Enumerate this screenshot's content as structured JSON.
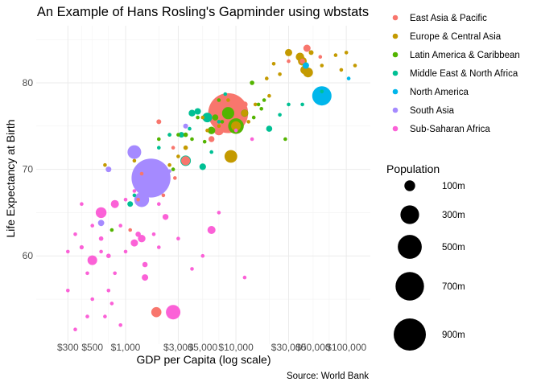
{
  "chart_data": {
    "type": "scatter",
    "title": "An Example of Hans Rosling's Gapminder using wbstats",
    "xlabel": "GDP per Capita (log scale)",
    "ylabel": "Life Expectancy at Birth",
    "caption": "Source: World Bank",
    "x_scale": "log10",
    "xlim": [
      155,
      165000
    ],
    "ylim": [
      49.8,
      86.6
    ],
    "x_ticks": [
      300,
      500,
      1000,
      3000,
      5000,
      10000,
      30000,
      50000,
      100000
    ],
    "x_tick_labels": [
      "$300",
      "$500",
      "$1,000",
      "$3,000",
      "$5,000",
      "$10,000",
      "$30,000",
      "$50,000",
      "$100,000"
    ],
    "y_ticks": [
      60,
      70,
      80
    ],
    "y_tick_labels": [
      "60",
      "70",
      "80"
    ],
    "grid": true,
    "legend_color_position": "top-right",
    "legend_size_position": "right",
    "size_legend": {
      "title": "Population",
      "entries": [
        {
          "label": "100m",
          "value": 100
        },
        {
          "label": "300m",
          "value": 300
        },
        {
          "label": "500m",
          "value": 500
        },
        {
          "label": "700m",
          "value": 700
        },
        {
          "label": "900m",
          "value": 900
        }
      ]
    },
    "series": [
      {
        "name": "East Asia & Pacific",
        "color": "#F8766D",
        "points": [
          {
            "x": 2000,
            "y": 75.5,
            "pop": 20
          },
          {
            "x": 3500,
            "y": 71,
            "pop": 70
          },
          {
            "x": 8500,
            "y": 76.5,
            "pop": 1380
          },
          {
            "x": 7000,
            "y": 74.5,
            "pop": 80
          },
          {
            "x": 6000,
            "y": 73.5,
            "pop": 30
          },
          {
            "x": 12000,
            "y": 77.5,
            "pop": 30
          },
          {
            "x": 44000,
            "y": 84,
            "pop": 45
          },
          {
            "x": 40000,
            "y": 82.5,
            "pop": 23
          },
          {
            "x": 30000,
            "y": 82.5,
            "pop": 8
          },
          {
            "x": 58000,
            "y": 83,
            "pop": 6
          },
          {
            "x": 1900,
            "y": 53.5,
            "pop": 90
          },
          {
            "x": 2700,
            "y": 72.5,
            "pop": 6
          },
          {
            "x": 1400,
            "y": 69.5,
            "pop": 6
          },
          {
            "x": 2200,
            "y": 67,
            "pop": 10
          },
          {
            "x": 2800,
            "y": 69,
            "pop": 5
          },
          {
            "x": 1100,
            "y": 63,
            "pop": 4
          },
          {
            "x": 1300,
            "y": 66.5,
            "pop": 5
          }
        ]
      },
      {
        "name": "Europe & Central Asia",
        "color": "#C49A00",
        "points": [
          {
            "x": 9000,
            "y": 71.5,
            "pop": 140
          },
          {
            "x": 10000,
            "y": 75,
            "pop": 80
          },
          {
            "x": 45000,
            "y": 81.2,
            "pop": 82
          },
          {
            "x": 40000,
            "y": 82.5,
            "pop": 65
          },
          {
            "x": 38000,
            "y": 83,
            "pop": 60
          },
          {
            "x": 30000,
            "y": 83.5,
            "pop": 46
          },
          {
            "x": 42000,
            "y": 81.5,
            "pop": 66
          },
          {
            "x": 48000,
            "y": 83.5,
            "pop": 20
          },
          {
            "x": 60000,
            "y": 82,
            "pop": 10
          },
          {
            "x": 80000,
            "y": 83.2,
            "pop": 6
          },
          {
            "x": 100000,
            "y": 83.5,
            "pop": 1
          },
          {
            "x": 120000,
            "y": 82,
            "pop": 1
          },
          {
            "x": 90000,
            "y": 81.5,
            "pop": 1
          },
          {
            "x": 25000,
            "y": 81,
            "pop": 5
          },
          {
            "x": 20000,
            "y": 78.5,
            "pop": 10
          },
          {
            "x": 15000,
            "y": 77.5,
            "pop": 5
          },
          {
            "x": 12000,
            "y": 76.5,
            "pop": 38
          },
          {
            "x": 13000,
            "y": 75.5,
            "pop": 10
          },
          {
            "x": 7000,
            "y": 75,
            "pop": 7
          },
          {
            "x": 5500,
            "y": 74.5,
            "pop": 4
          },
          {
            "x": 8500,
            "y": 78,
            "pop": 8
          },
          {
            "x": 3500,
            "y": 72.5,
            "pop": 18
          },
          {
            "x": 2500,
            "y": 70.5,
            "pop": 9
          },
          {
            "x": 1200,
            "y": 71,
            "pop": 6
          },
          {
            "x": 650,
            "y": 70.5,
            "pop": 9
          },
          {
            "x": 3000,
            "y": 71.5,
            "pop": 3
          },
          {
            "x": 5000,
            "y": 76,
            "pop": 3
          },
          {
            "x": 19000,
            "y": 80.5,
            "pop": 2
          },
          {
            "x": 22000,
            "y": 82.2,
            "pop": 2
          }
        ]
      },
      {
        "name": "Latin America & Caribbean",
        "color": "#53B400",
        "points": [
          {
            "x": 10000,
            "y": 75,
            "pop": 210
          },
          {
            "x": 8500,
            "y": 76.5,
            "pop": 130
          },
          {
            "x": 12000,
            "y": 76.5,
            "pop": 45
          },
          {
            "x": 14000,
            "y": 80,
            "pop": 18
          },
          {
            "x": 6000,
            "y": 74.5,
            "pop": 50
          },
          {
            "x": 6500,
            "y": 76,
            "pop": 32
          },
          {
            "x": 3500,
            "y": 74,
            "pop": 17
          },
          {
            "x": 4000,
            "y": 73.5,
            "pop": 11
          },
          {
            "x": 2000,
            "y": 73.5,
            "pop": 10
          },
          {
            "x": 2500,
            "y": 74,
            "pop": 9
          },
          {
            "x": 750,
            "y": 63,
            "pop": 11
          },
          {
            "x": 14500,
            "y": 76,
            "pop": 4
          },
          {
            "x": 17000,
            "y": 77,
            "pop": 6
          },
          {
            "x": 16000,
            "y": 77.5,
            "pop": 3
          },
          {
            "x": 7000,
            "y": 78,
            "pop": 5
          },
          {
            "x": 3000,
            "y": 74,
            "pop": 4
          },
          {
            "x": 4500,
            "y": 76,
            "pop": 2
          },
          {
            "x": 5200,
            "y": 73.2,
            "pop": 3
          },
          {
            "x": 18000,
            "y": 78,
            "pop": 2
          },
          {
            "x": 2700,
            "y": 70,
            "pop": 2
          },
          {
            "x": 28000,
            "y": 73.5,
            "pop": 1
          },
          {
            "x": 7500,
            "y": 75.5,
            "pop": 6
          }
        ]
      },
      {
        "name": "Middle East & North Africa",
        "color": "#00C094",
        "points": [
          {
            "x": 3500,
            "y": 71,
            "pop": 95
          },
          {
            "x": 5500,
            "y": 76,
            "pop": 80
          },
          {
            "x": 4000,
            "y": 76.5,
            "pop": 40
          },
          {
            "x": 5000,
            "y": 70.3,
            "pop": 38
          },
          {
            "x": 4500,
            "y": 76.7,
            "pop": 35
          },
          {
            "x": 3200,
            "y": 74,
            "pop": 28
          },
          {
            "x": 1100,
            "y": 66,
            "pop": 28
          },
          {
            "x": 20000,
            "y": 74.7,
            "pop": 32
          },
          {
            "x": 40000,
            "y": 77.5,
            "pop": 9
          },
          {
            "x": 60000,
            "y": 79,
            "pop": 3
          },
          {
            "x": 30000,
            "y": 77.5,
            "pop": 4
          },
          {
            "x": 25000,
            "y": 76.3,
            "pop": 1
          },
          {
            "x": 8000,
            "y": 78.7,
            "pop": 8
          },
          {
            "x": 3800,
            "y": 74.7,
            "pop": 10
          },
          {
            "x": 2000,
            "y": 72.5,
            "pop": 6
          },
          {
            "x": 6000,
            "y": 72,
            "pop": 8
          },
          {
            "x": 1200,
            "y": 67,
            "pop": 8
          },
          {
            "x": 2500,
            "y": 74,
            "pop": 3
          },
          {
            "x": 7000,
            "y": 75.5,
            "pop": 4
          }
        ]
      },
      {
        "name": "North America",
        "color": "#00B6EB",
        "points": [
          {
            "x": 60000,
            "y": 78.5,
            "pop": 320
          },
          {
            "x": 43000,
            "y": 82,
            "pop": 36
          },
          {
            "x": 105000,
            "y": 80.5,
            "pop": 0.06
          }
        ]
      },
      {
        "name": "South Asia",
        "color": "#A58AFF",
        "points": [
          {
            "x": 1700,
            "y": 69,
            "pop": 1310
          },
          {
            "x": 1400,
            "y": 66.5,
            "pop": 190
          },
          {
            "x": 1200,
            "y": 72,
            "pop": 160
          },
          {
            "x": 700,
            "y": 70,
            "pop": 28
          },
          {
            "x": 3500,
            "y": 75,
            "pop": 21
          },
          {
            "x": 2500,
            "y": 69.8,
            "pop": 0.8
          },
          {
            "x": 600,
            "y": 63.8,
            "pop": 34
          }
        ]
      },
      {
        "name": "Sub-Saharan Africa",
        "color": "#FB61D7",
        "points": [
          {
            "x": 2700,
            "y": 53.5,
            "pop": 180
          },
          {
            "x": 600,
            "y": 65,
            "pop": 100
          },
          {
            "x": 500,
            "y": 59.5,
            "pop": 80
          },
          {
            "x": 1200,
            "y": 61.5,
            "pop": 45
          },
          {
            "x": 800,
            "y": 66,
            "pop": 55
          },
          {
            "x": 1400,
            "y": 62,
            "pop": 50
          },
          {
            "x": 6000,
            "y": 63,
            "pop": 55
          },
          {
            "x": 1500,
            "y": 59,
            "pop": 25
          },
          {
            "x": 1300,
            "y": 62.5,
            "pop": 25
          },
          {
            "x": 2300,
            "y": 64.5,
            "pop": 30
          },
          {
            "x": 1500,
            "y": 57.5,
            "pop": 35
          },
          {
            "x": 300,
            "y": 56,
            "pop": 12
          },
          {
            "x": 350,
            "y": 62.5,
            "pop": 12
          },
          {
            "x": 450,
            "y": 58,
            "pop": 12
          },
          {
            "x": 400,
            "y": 61,
            "pop": 15
          },
          {
            "x": 600,
            "y": 62,
            "pop": 18
          },
          {
            "x": 700,
            "y": 60,
            "pop": 17
          },
          {
            "x": 800,
            "y": 58,
            "pop": 12
          },
          {
            "x": 1000,
            "y": 60.5,
            "pop": 10
          },
          {
            "x": 900,
            "y": 63.5,
            "pop": 8
          },
          {
            "x": 300,
            "y": 60.5,
            "pop": 8
          },
          {
            "x": 400,
            "y": 66,
            "pop": 11
          },
          {
            "x": 750,
            "y": 54.5,
            "pop": 6
          },
          {
            "x": 500,
            "y": 63.5,
            "pop": 6
          },
          {
            "x": 1000,
            "y": 66.5,
            "pop": 7
          },
          {
            "x": 1200,
            "y": 67.5,
            "pop": 4
          },
          {
            "x": 2000,
            "y": 66,
            "pop": 5
          },
          {
            "x": 3000,
            "y": 62,
            "pop": 5
          },
          {
            "x": 5000,
            "y": 60,
            "pop": 3
          },
          {
            "x": 7000,
            "y": 65,
            "pop": 2
          },
          {
            "x": 12000,
            "y": 57.5,
            "pop": 1
          },
          {
            "x": 450,
            "y": 53,
            "pop": 4
          },
          {
            "x": 350,
            "y": 51.5,
            "pop": 2
          },
          {
            "x": 500,
            "y": 55,
            "pop": 3
          },
          {
            "x": 600,
            "y": 60.5,
            "pop": 3
          },
          {
            "x": 650,
            "y": 53,
            "pop": 2
          },
          {
            "x": 700,
            "y": 56,
            "pop": 2
          },
          {
            "x": 900,
            "y": 52,
            "pop": 1
          },
          {
            "x": 1800,
            "y": 62.5,
            "pop": 2
          },
          {
            "x": 2000,
            "y": 61,
            "pop": 2
          },
          {
            "x": 4000,
            "y": 58.5,
            "pop": 2
          },
          {
            "x": 14000,
            "y": 73.5,
            "pop": 1
          },
          {
            "x": 10000,
            "y": 74.5,
            "pop": 1
          }
        ]
      }
    ]
  }
}
